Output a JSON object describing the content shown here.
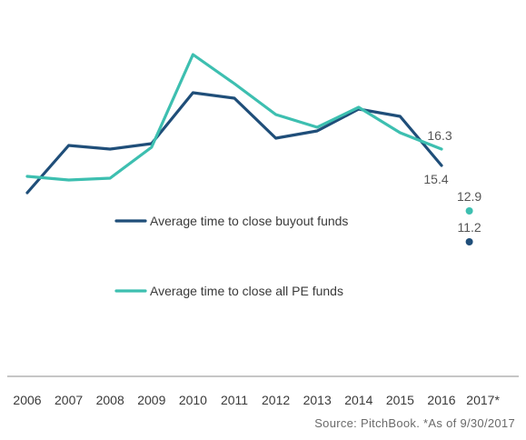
{
  "chart_data": {
    "type": "line",
    "categories": [
      "2006",
      "2007",
      "2008",
      "2009",
      "2010",
      "2011",
      "2012",
      "2013",
      "2014",
      "2015",
      "2016",
      "2017*"
    ],
    "ylim": [
      8,
      24
    ],
    "grid": false,
    "legend_position": "center-left",
    "series": [
      {
        "name": "Average time to close buyout funds",
        "color": "#1f4e79",
        "values": [
          13.9,
          16.5,
          16.3,
          16.6,
          19.4,
          19.1,
          16.9,
          17.3,
          18.5,
          18.1,
          15.4,
          11.2
        ],
        "point_labels": {
          "10": "15.4",
          "11": "11.2"
        }
      },
      {
        "name": "Average time to close all PE funds",
        "color": "#3dbfb0",
        "values": [
          14.8,
          14.6,
          14.7,
          16.4,
          21.5,
          19.9,
          18.2,
          17.5,
          18.6,
          17.2,
          16.3,
          12.9
        ],
        "point_labels": {
          "10": "16.3",
          "11": "12.9"
        }
      }
    ],
    "connect_last_point": false
  },
  "source_text": "Source: PitchBook. *As of 9/30/2017"
}
